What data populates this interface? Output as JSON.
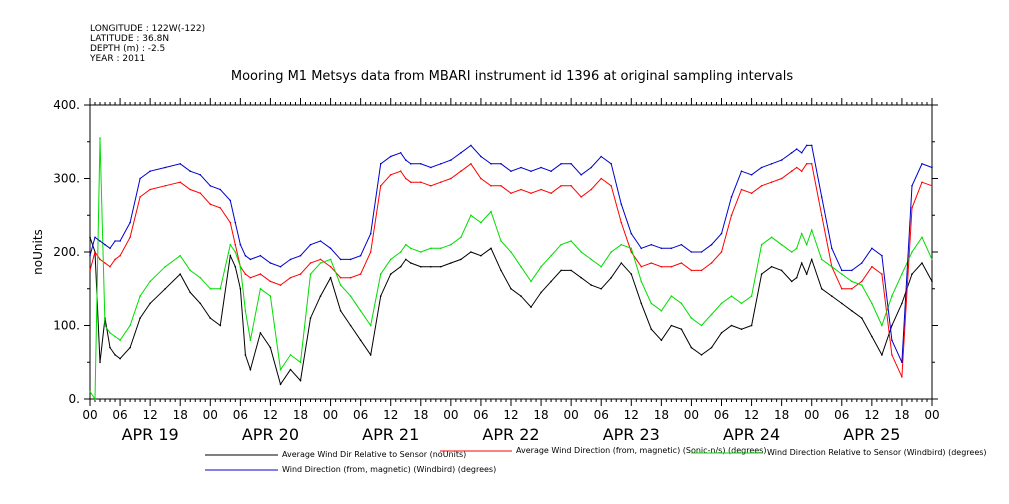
{
  "meta": {
    "longitude": "LONGITUDE : 122W(-122)",
    "latitude": "LATITUDE : 36.8N",
    "depth": "DEPTH (m) : -2.5",
    "year": "YEAR : 2011"
  },
  "chart_data": {
    "type": "line",
    "title": "Mooring M1 Metsys data from MBARI instrument id 1396 at original sampling intervals",
    "ylabel": "noUnits",
    "xlabel": "",
    "ylim": [
      0,
      400
    ],
    "xlim_hours": [
      0,
      168
    ],
    "y_ticks": [
      "0.",
      "100.",
      "200.",
      "300.",
      "400."
    ],
    "x_tick_labels": [
      "00",
      "06",
      "12",
      "18",
      "00",
      "06",
      "12",
      "18",
      "00",
      "06",
      "12",
      "18",
      "00",
      "06",
      "12",
      "18",
      "00",
      "06",
      "12",
      "18",
      "00",
      "06",
      "12",
      "18",
      "00",
      "06",
      "12",
      "18",
      "00"
    ],
    "day_labels": [
      "APR 19",
      "APR 20",
      "APR 21",
      "APR 22",
      "APR 23",
      "APR 24",
      "APR 25"
    ],
    "grid": false,
    "legend_position": "bottom",
    "series": [
      {
        "name": "Average Wind Dir Relative to Sensor (noUnits)",
        "color": "#000000",
        "x": [
          0,
          1,
          2,
          3,
          4,
          5,
          6,
          8,
          10,
          12,
          15,
          18,
          20,
          22,
          24,
          26,
          28,
          29,
          30,
          31,
          32,
          34,
          36,
          38,
          40,
          42,
          44,
          46,
          48,
          50,
          52,
          54,
          56,
          58,
          60,
          62,
          63,
          64,
          66,
          68,
          70,
          72,
          74,
          76,
          78,
          80,
          82,
          84,
          86,
          88,
          90,
          92,
          94,
          96,
          98,
          100,
          102,
          104,
          106,
          108,
          110,
          112,
          114,
          116,
          118,
          120,
          122,
          124,
          126,
          128,
          130,
          132,
          134,
          136,
          138,
          140,
          141,
          142,
          143,
          144,
          146,
          148,
          150,
          152,
          154,
          156,
          158,
          160,
          162,
          164,
          166,
          168
        ],
        "values": [
          220,
          200,
          50,
          110,
          70,
          60,
          55,
          70,
          110,
          130,
          150,
          170,
          145,
          130,
          110,
          100,
          195,
          180,
          150,
          60,
          40,
          90,
          70,
          20,
          40,
          25,
          110,
          140,
          165,
          120,
          100,
          80,
          60,
          140,
          170,
          180,
          190,
          185,
          180,
          180,
          180,
          185,
          190,
          200,
          195,
          205,
          175,
          150,
          140,
          125,
          145,
          160,
          175,
          175,
          165,
          155,
          150,
          165,
          185,
          170,
          130,
          95,
          80,
          100,
          95,
          70,
          60,
          70,
          90,
          100,
          95,
          100,
          170,
          180,
          175,
          160,
          165,
          185,
          170,
          190,
          150,
          140,
          130,
          120,
          110,
          85,
          60,
          100,
          130,
          170,
          185,
          160
        ]
      },
      {
        "name": "Average Wind Direction (from, magnetic) (Sonic-n/s) (degrees)",
        "color": "#ff0000",
        "x": [
          0,
          1,
          2,
          3,
          4,
          5,
          6,
          8,
          10,
          12,
          15,
          18,
          20,
          22,
          24,
          26,
          28,
          29,
          30,
          31,
          32,
          34,
          36,
          38,
          40,
          42,
          44,
          46,
          48,
          50,
          52,
          54,
          56,
          58,
          60,
          62,
          63,
          64,
          66,
          68,
          70,
          72,
          74,
          76,
          78,
          80,
          82,
          84,
          86,
          88,
          90,
          92,
          94,
          96,
          98,
          100,
          102,
          104,
          106,
          108,
          110,
          112,
          114,
          116,
          118,
          120,
          122,
          124,
          126,
          128,
          130,
          132,
          134,
          136,
          138,
          140,
          141,
          142,
          143,
          144,
          146,
          148,
          150,
          152,
          154,
          156,
          158,
          160,
          162,
          164,
          166,
          168
        ],
        "values": [
          175,
          200,
          190,
          185,
          180,
          190,
          195,
          220,
          275,
          285,
          290,
          295,
          285,
          280,
          265,
          260,
          240,
          210,
          180,
          170,
          165,
          170,
          160,
          155,
          165,
          170,
          185,
          190,
          180,
          165,
          165,
          170,
          200,
          290,
          305,
          310,
          300,
          295,
          295,
          290,
          295,
          300,
          310,
          320,
          300,
          290,
          290,
          280,
          285,
          280,
          285,
          280,
          290,
          290,
          275,
          285,
          300,
          290,
          240,
          200,
          180,
          185,
          180,
          180,
          185,
          175,
          175,
          185,
          200,
          250,
          285,
          280,
          290,
          295,
          300,
          310,
          315,
          310,
          320,
          320,
          250,
          180,
          150,
          150,
          160,
          180,
          170,
          60,
          30,
          260,
          295,
          290
        ]
      },
      {
        "name": "Wind Direction Relative to Sensor (Windbird) (degrees)",
        "color": "#00dd00",
        "x": [
          0,
          1,
          2,
          3,
          4,
          5,
          6,
          8,
          10,
          12,
          15,
          18,
          20,
          22,
          24,
          26,
          28,
          29,
          30,
          31,
          32,
          34,
          36,
          38,
          40,
          42,
          44,
          46,
          48,
          50,
          52,
          54,
          56,
          58,
          60,
          62,
          63,
          64,
          66,
          68,
          70,
          72,
          74,
          76,
          78,
          80,
          82,
          84,
          86,
          88,
          90,
          92,
          94,
          96,
          98,
          100,
          102,
          104,
          106,
          108,
          110,
          112,
          114,
          116,
          118,
          120,
          122,
          124,
          126,
          128,
          130,
          132,
          134,
          136,
          138,
          140,
          141,
          142,
          143,
          144,
          146,
          148,
          150,
          152,
          154,
          156,
          158,
          160,
          162,
          164,
          166,
          168
        ],
        "values": [
          10,
          0,
          355,
          100,
          90,
          85,
          80,
          100,
          140,
          160,
          180,
          195,
          175,
          165,
          150,
          150,
          210,
          200,
          180,
          120,
          80,
          150,
          140,
          40,
          60,
          50,
          170,
          185,
          190,
          155,
          140,
          120,
          100,
          170,
          190,
          200,
          210,
          205,
          200,
          205,
          205,
          210,
          220,
          250,
          240,
          255,
          215,
          200,
          180,
          160,
          180,
          195,
          210,
          215,
          200,
          190,
          180,
          200,
          210,
          205,
          160,
          130,
          120,
          140,
          130,
          110,
          100,
          115,
          130,
          140,
          130,
          140,
          210,
          220,
          210,
          200,
          205,
          225,
          210,
          230,
          190,
          180,
          170,
          160,
          155,
          130,
          100,
          140,
          170,
          200,
          220,
          190
        ]
      },
      {
        "name": "Wind Direction (from, magnetic) (Windbird) (degrees)",
        "color": "#0000cc",
        "x": [
          0,
          1,
          2,
          3,
          4,
          5,
          6,
          8,
          10,
          12,
          15,
          18,
          20,
          22,
          24,
          26,
          28,
          29,
          30,
          31,
          32,
          34,
          36,
          38,
          40,
          42,
          44,
          46,
          48,
          50,
          52,
          54,
          56,
          58,
          60,
          62,
          63,
          64,
          66,
          68,
          70,
          72,
          74,
          76,
          78,
          80,
          82,
          84,
          86,
          88,
          90,
          92,
          94,
          96,
          98,
          100,
          102,
          104,
          106,
          108,
          110,
          112,
          114,
          116,
          118,
          120,
          122,
          124,
          126,
          128,
          130,
          132,
          134,
          136,
          138,
          140,
          141,
          142,
          143,
          144,
          146,
          148,
          150,
          152,
          154,
          156,
          158,
          160,
          162,
          164,
          166,
          168
        ],
        "values": [
          195,
          220,
          215,
          210,
          205,
          215,
          215,
          240,
          300,
          310,
          315,
          320,
          310,
          305,
          290,
          285,
          270,
          240,
          210,
          195,
          190,
          195,
          185,
          180,
          190,
          195,
          210,
          215,
          205,
          190,
          190,
          195,
          225,
          320,
          330,
          335,
          325,
          320,
          320,
          315,
          320,
          325,
          335,
          345,
          330,
          320,
          320,
          310,
          315,
          310,
          315,
          310,
          320,
          320,
          305,
          315,
          330,
          320,
          265,
          225,
          205,
          210,
          205,
          205,
          210,
          200,
          200,
          210,
          225,
          275,
          310,
          305,
          315,
          320,
          325,
          335,
          340,
          335,
          345,
          345,
          275,
          205,
          175,
          175,
          185,
          205,
          195,
          80,
          50,
          290,
          320,
          315
        ]
      }
    ]
  }
}
